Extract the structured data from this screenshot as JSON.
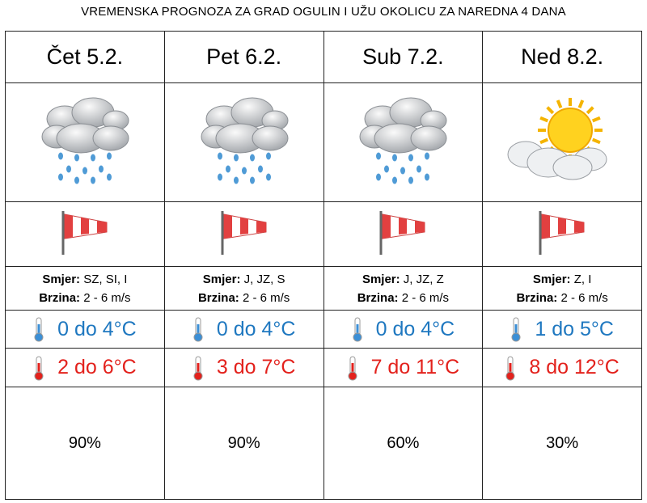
{
  "title": "VREMENSKA PROGNOZA ZA GRAD OGULIN I UŽU OKOLICU ZA NAREDNA 4 DANA",
  "labels": {
    "direction": "Smjer:",
    "speed": "Brzina:"
  },
  "days": [
    {
      "day": "Čet 5.2.",
      "direction": "SZ, SI, I",
      "speed": "2 - 6 m/s",
      "min_temp": "0 do 4°C",
      "max_temp": "2 do 6°C",
      "precipitation": "90%"
    },
    {
      "day": "Pet 6.2.",
      "direction": "J, JZ, S",
      "speed": "2 - 6 m/s",
      "min_temp": "0 do 4°C",
      "max_temp": "3 do 7°C",
      "precipitation": "90%"
    },
    {
      "day": "Sub 7.2.",
      "direction": "J, JZ, Z",
      "speed": "2 - 6 m/s",
      "min_temp": "0 do 4°C",
      "max_temp": "7 do 11°C",
      "precipitation": "60%"
    },
    {
      "day": "Ned 8.2.",
      "direction": "Z, I",
      "speed": "2 - 6 m/s",
      "min_temp": "1 do 5°C",
      "max_temp": "8 do 12°C",
      "precipitation": "30%"
    }
  ]
}
